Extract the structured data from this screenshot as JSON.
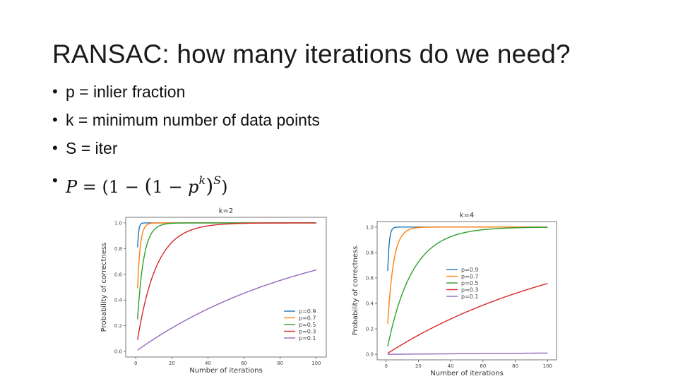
{
  "slide": {
    "title": "RANSAC: how many iterations do we need?",
    "bullet_marker": "•",
    "bullets": [
      {
        "text": "p = inlier fraction"
      },
      {
        "text": "k = minimum number of data points"
      },
      {
        "text": "S = iter"
      }
    ],
    "formula": {
      "P": "P",
      "eq": " = (1  − ",
      "paren_open": "(",
      "one_minus": "1 − ",
      "p": "p",
      "k_sup": "k",
      "paren_close": ")",
      "S_sup": "S",
      "end": ")"
    }
  },
  "colors": {
    "p=0.9": "#1f77b4",
    "p=0.7": "#ff7f0e",
    "p=0.5": "#2ca02c",
    "p=0.3": "#d62728",
    "p=0.1": "#9467bd"
  },
  "chart_data": [
    {
      "type": "line",
      "title": "k=2",
      "xlabel": "Number of iterations",
      "ylabel": "Probability of correctness",
      "xlim": [
        0,
        100
      ],
      "ylim": [
        0.0,
        1.0
      ],
      "xticks": [
        "0",
        "20",
        "40",
        "60",
        "80",
        "100"
      ],
      "yticks": [
        "0.0",
        "0.2",
        "0.4",
        "0.6",
        "0.8",
        "1.0"
      ],
      "k": 2,
      "x_range": [
        1,
        100
      ],
      "legend_position": "lower-right",
      "grid": false,
      "series": [
        {
          "name": "p=0.9",
          "p": 0.9
        },
        {
          "name": "p=0.7",
          "p": 0.7
        },
        {
          "name": "p=0.5",
          "p": 0.5
        },
        {
          "name": "p=0.3",
          "p": 0.3
        },
        {
          "name": "p=0.1",
          "p": 0.1
        }
      ]
    },
    {
      "type": "line",
      "title": "k=4",
      "xlabel": "Number of iterations",
      "ylabel": "Probability of correctness",
      "xlim": [
        0,
        100
      ],
      "ylim": [
        0.0,
        1.0
      ],
      "xticks": [
        "0",
        "20",
        "40",
        "60",
        "80",
        "100"
      ],
      "yticks": [
        "0.0",
        "0.2",
        "0.4",
        "0.6",
        "0.8",
        "1.0"
      ],
      "k": 4,
      "x_range": [
        1,
        100
      ],
      "legend_position": "center-right",
      "grid": false,
      "series": [
        {
          "name": "p=0.9",
          "p": 0.9
        },
        {
          "name": "p=0.7",
          "p": 0.7
        },
        {
          "name": "p=0.5",
          "p": 0.5
        },
        {
          "name": "p=0.3",
          "p": 0.3
        },
        {
          "name": "p=0.1",
          "p": 0.1
        }
      ]
    }
  ]
}
